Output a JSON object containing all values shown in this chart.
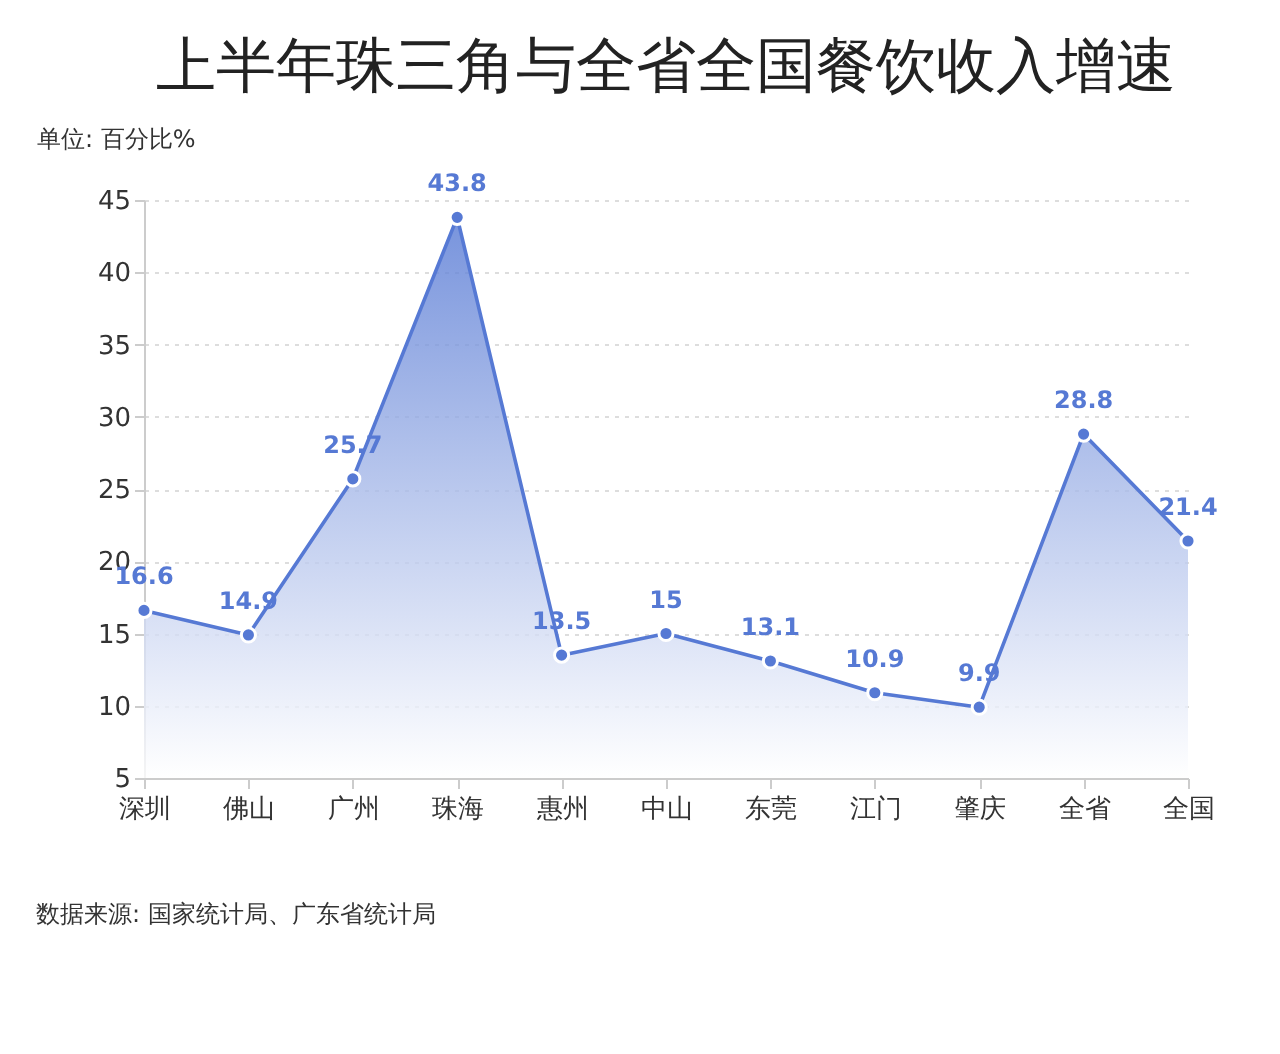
{
  "chart_data": {
    "type": "area",
    "title": "上半年珠三角与全省全国餐饮收入增速",
    "ylabel": "单位: 百分比%",
    "categories": [
      "深圳",
      "佛山",
      "广州",
      "珠海",
      "惠州",
      "中山",
      "东莞",
      "江门",
      "肇庆",
      "全省",
      "全国"
    ],
    "series": [
      {
        "color": "#5679d4",
        "values": [
          16.6,
          14.9,
          25.7,
          43.8,
          13.5,
          15,
          13.1,
          10.9,
          9.9,
          28.8,
          21.4
        ]
      }
    ],
    "ylim": [
      5,
      45
    ],
    "yticks": [
      5,
      10,
      15,
      20,
      25,
      30,
      35,
      40,
      45
    ],
    "grid": "y",
    "marker": "circle",
    "data_labels": true,
    "annotations": [
      "数据来源: 国家统计局、广东省统计局"
    ]
  }
}
